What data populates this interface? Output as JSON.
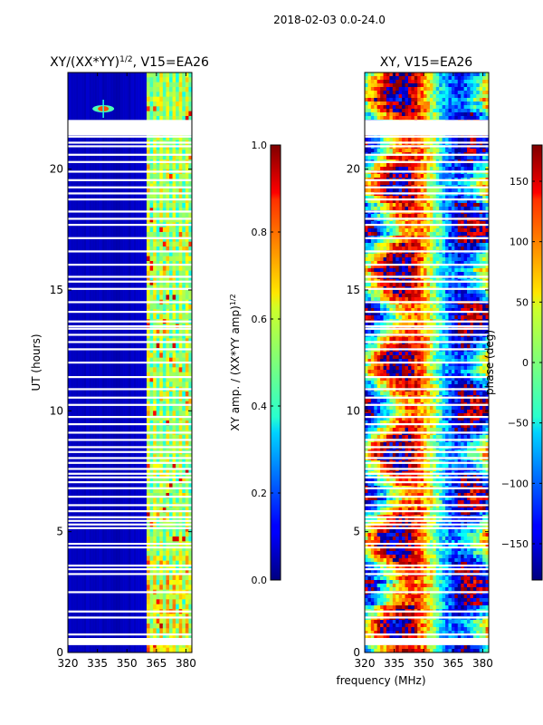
{
  "suptitle": "2018-02-03 0.0-24.0",
  "shared_xlabel": "frequency (MHz)",
  "chart_data": [
    {
      "type": "heatmap",
      "title_main": "XY/(XX*YY)",
      "title_sup": "1/2",
      "title_tail": ", V15=EA26",
      "ylabel": "UT (hours)",
      "xlim": [
        320,
        383
      ],
      "ylim": [
        0,
        24
      ],
      "xticks": [
        320,
        335,
        350,
        365,
        380
      ],
      "yticks": [
        0,
        5,
        10,
        15,
        20
      ],
      "colormap": "jet",
      "band_start_mhz": 360,
      "bright_feature": {
        "freq_mhz": 338,
        "ut_hours": 22.5
      },
      "colorbar": {
        "label_main": "XY amp. / (XX*YY amp)",
        "label_sup": "1/2",
        "range": [
          0.0,
          1.0
        ],
        "ticks": [
          "0.0",
          "0.2",
          "0.4",
          "0.6",
          "0.8",
          "1.0"
        ]
      }
    },
    {
      "type": "heatmap",
      "title_main": "XY, V15=EA26",
      "xlim": [
        320,
        383
      ],
      "ylim": [
        0,
        24
      ],
      "xticks": [
        320,
        335,
        350,
        365,
        380
      ],
      "yticks": [
        0,
        5,
        10,
        15,
        20
      ],
      "colormap": "jet",
      "colorbar": {
        "label_main": "phase (deg)",
        "range": [
          -180,
          180
        ],
        "ticks": [
          "−150",
          "−100",
          "−50",
          "0",
          "50",
          "100",
          "150"
        ]
      }
    }
  ],
  "flagged_ut_hours": [
    0.35,
    0.55,
    0.75,
    1.45,
    1.7,
    2.5,
    3.25,
    3.45,
    3.6,
    4.35,
    4.5,
    5.15,
    5.3,
    5.45,
    5.6,
    5.85,
    6.1,
    6.45,
    6.8,
    7.05,
    7.25,
    7.4,
    7.6,
    7.85,
    8.05,
    8.3,
    8.5,
    8.8,
    9.1,
    9.45,
    9.75,
    10.25,
    10.55,
    10.9,
    11.4,
    12.0,
    12.55,
    12.85,
    13.15,
    13.4,
    13.5,
    13.7,
    14.1,
    14.5,
    15.05,
    15.35,
    15.55,
    16.05,
    16.6,
    17.15,
    17.7,
    17.95,
    18.25,
    18.75,
    19.0,
    19.25,
    19.55,
    19.9,
    20.3,
    20.6,
    20.95,
    21.1,
    21.35,
    21.55,
    21.75,
    22.0
  ]
}
